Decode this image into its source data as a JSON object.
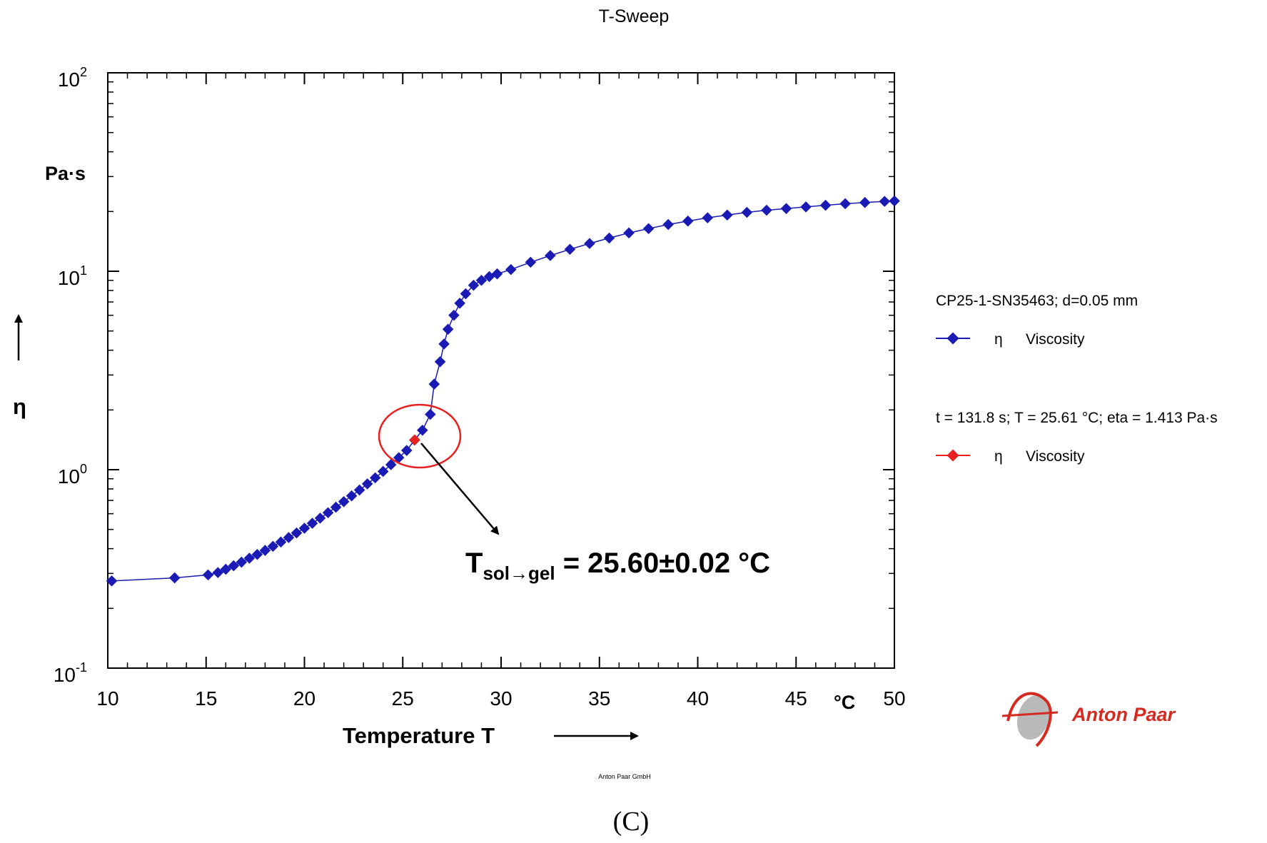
{
  "chart_data": {
    "type": "scatter",
    "title": "T-Sweep",
    "xlabel": "Temperature T",
    "x_unit": "°C",
    "ylabel": "η",
    "y_unit": "Pa·s",
    "x_range": [
      10,
      50
    ],
    "y_range": [
      0.1,
      100
    ],
    "y_scale": "log",
    "x_ticks": [
      "10",
      "15",
      "20",
      "25",
      "30",
      "35",
      "40",
      "45",
      "50"
    ],
    "y_ticks": [
      {
        "base": "10",
        "exp": "-1"
      },
      {
        "base": "10",
        "exp": "0"
      },
      {
        "base": "10",
        "exp": "1"
      },
      {
        "base": "10",
        "exp": "2"
      }
    ],
    "grid": false,
    "legend_position": "right",
    "legend": [
      {
        "header": "CP25-1-SN35463; d=0.05 mm",
        "symbol": "η",
        "label": "Viscosity",
        "color": "#1a1ab4"
      },
      {
        "header": "t = 131.8 s; T = 25.61 °C; eta = 1.413 Pa·s",
        "symbol": "η",
        "label": "Viscosity",
        "color": "#e8201f"
      }
    ],
    "series": [
      {
        "name": "Viscosity",
        "color": "#1a1ab4",
        "x": [
          10.2,
          13.4,
          15.1,
          15.6,
          16.0,
          16.4,
          16.8,
          17.2,
          17.6,
          18.0,
          18.4,
          18.8,
          19.2,
          19.6,
          20.0,
          20.4,
          20.8,
          21.2,
          21.6,
          22.0,
          22.4,
          22.8,
          23.2,
          23.6,
          24.0,
          24.4,
          24.8,
          25.2,
          25.6,
          26.0,
          26.4,
          26.6,
          26.9,
          27.1,
          27.3,
          27.6,
          27.9,
          28.2,
          28.6,
          29.0,
          29.4,
          29.8,
          30.5,
          31.5,
          32.5,
          33.5,
          34.5,
          35.5,
          36.5,
          37.5,
          38.5,
          39.5,
          40.5,
          41.5,
          42.5,
          43.5,
          44.5,
          45.5,
          46.5,
          47.5,
          48.5,
          49.5,
          50.0
        ],
        "y": [
          0.275,
          0.285,
          0.295,
          0.303,
          0.315,
          0.328,
          0.342,
          0.358,
          0.374,
          0.392,
          0.411,
          0.432,
          0.455,
          0.48,
          0.507,
          0.537,
          0.57,
          0.607,
          0.647,
          0.69,
          0.738,
          0.79,
          0.848,
          0.91,
          0.98,
          1.06,
          1.15,
          1.25,
          1.41,
          1.58,
          1.9,
          2.7,
          3.5,
          4.3,
          5.1,
          6.0,
          6.9,
          7.7,
          8.5,
          9.0,
          9.4,
          9.7,
          10.2,
          11.1,
          12.0,
          12.9,
          13.8,
          14.7,
          15.6,
          16.4,
          17.2,
          17.9,
          18.6,
          19.2,
          19.8,
          20.3,
          20.7,
          21.1,
          21.5,
          21.9,
          22.2,
          22.5,
          22.6
        ]
      },
      {
        "name": "Viscosity",
        "color": "#e8201f",
        "x": [
          25.61
        ],
        "y": [
          1.413
        ]
      }
    ],
    "annotation": {
      "main": "T",
      "subscript": "sol→gel",
      "value": " = 25.60±0.02 °C"
    }
  },
  "footer_text": "Anton Paar GmbH",
  "logo_text": "Anton Paar",
  "caption": "(C)"
}
